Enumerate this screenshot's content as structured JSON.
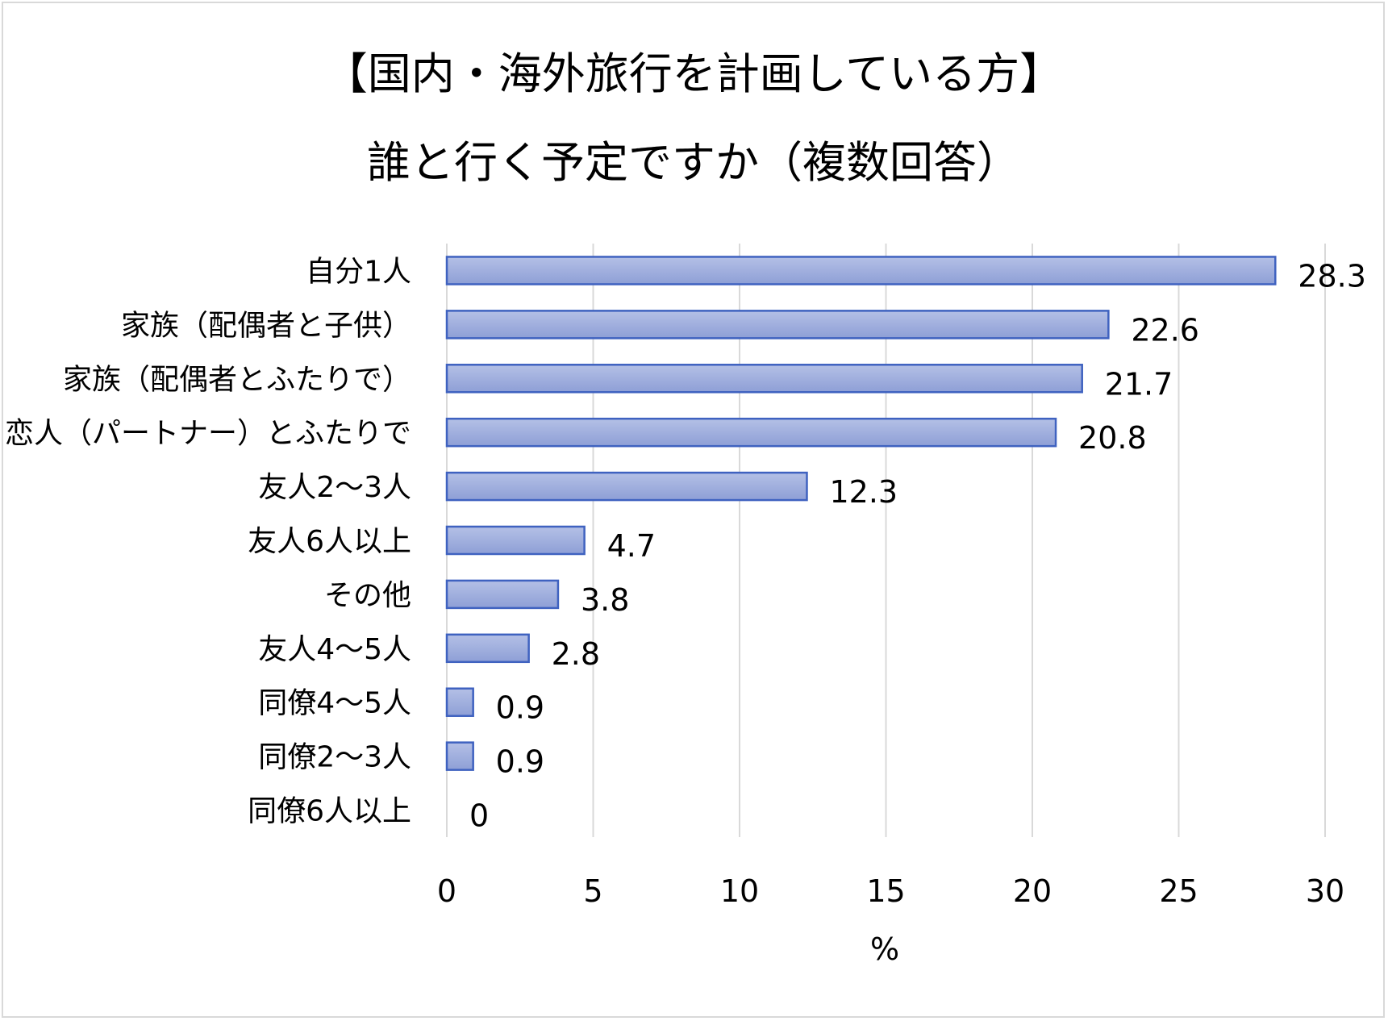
{
  "chart_data": {
    "type": "bar",
    "orientation": "horizontal",
    "title": "【国内・海外旅行を計画している方】",
    "subtitle": "誰と行く予定ですか（複数回答）",
    "categories": [
      "自分1人",
      "家族（配偶者と子供）",
      "家族（配偶者とふたりで）",
      "恋人（パートナー）とふたりで",
      "友人2～3人",
      "友人6人以上",
      "その他",
      "友人4～5人",
      "同僚4～5人",
      "同僚2～3人",
      "同僚6人以上"
    ],
    "values": [
      28.3,
      22.6,
      21.7,
      20.8,
      12.3,
      4.7,
      3.8,
      2.8,
      0.9,
      0.9,
      0
    ],
    "value_labels": [
      "28.3",
      "22.6",
      "21.7",
      "20.8",
      "12.3",
      "4.7",
      "3.8",
      "2.8",
      "0.9",
      "0.9",
      "0"
    ],
    "xlabel": "%",
    "ylabel": "",
    "xlim": [
      0,
      30
    ],
    "xticks": [
      0,
      5,
      10,
      15,
      20,
      25,
      30
    ],
    "grid": true,
    "legend": "none",
    "colors": {
      "bar_fill_top": "#b4c0e6",
      "bar_fill_bottom": "#8e9fd6",
      "bar_stroke": "#3f62c0",
      "grid": "#d9d9d9"
    }
  }
}
